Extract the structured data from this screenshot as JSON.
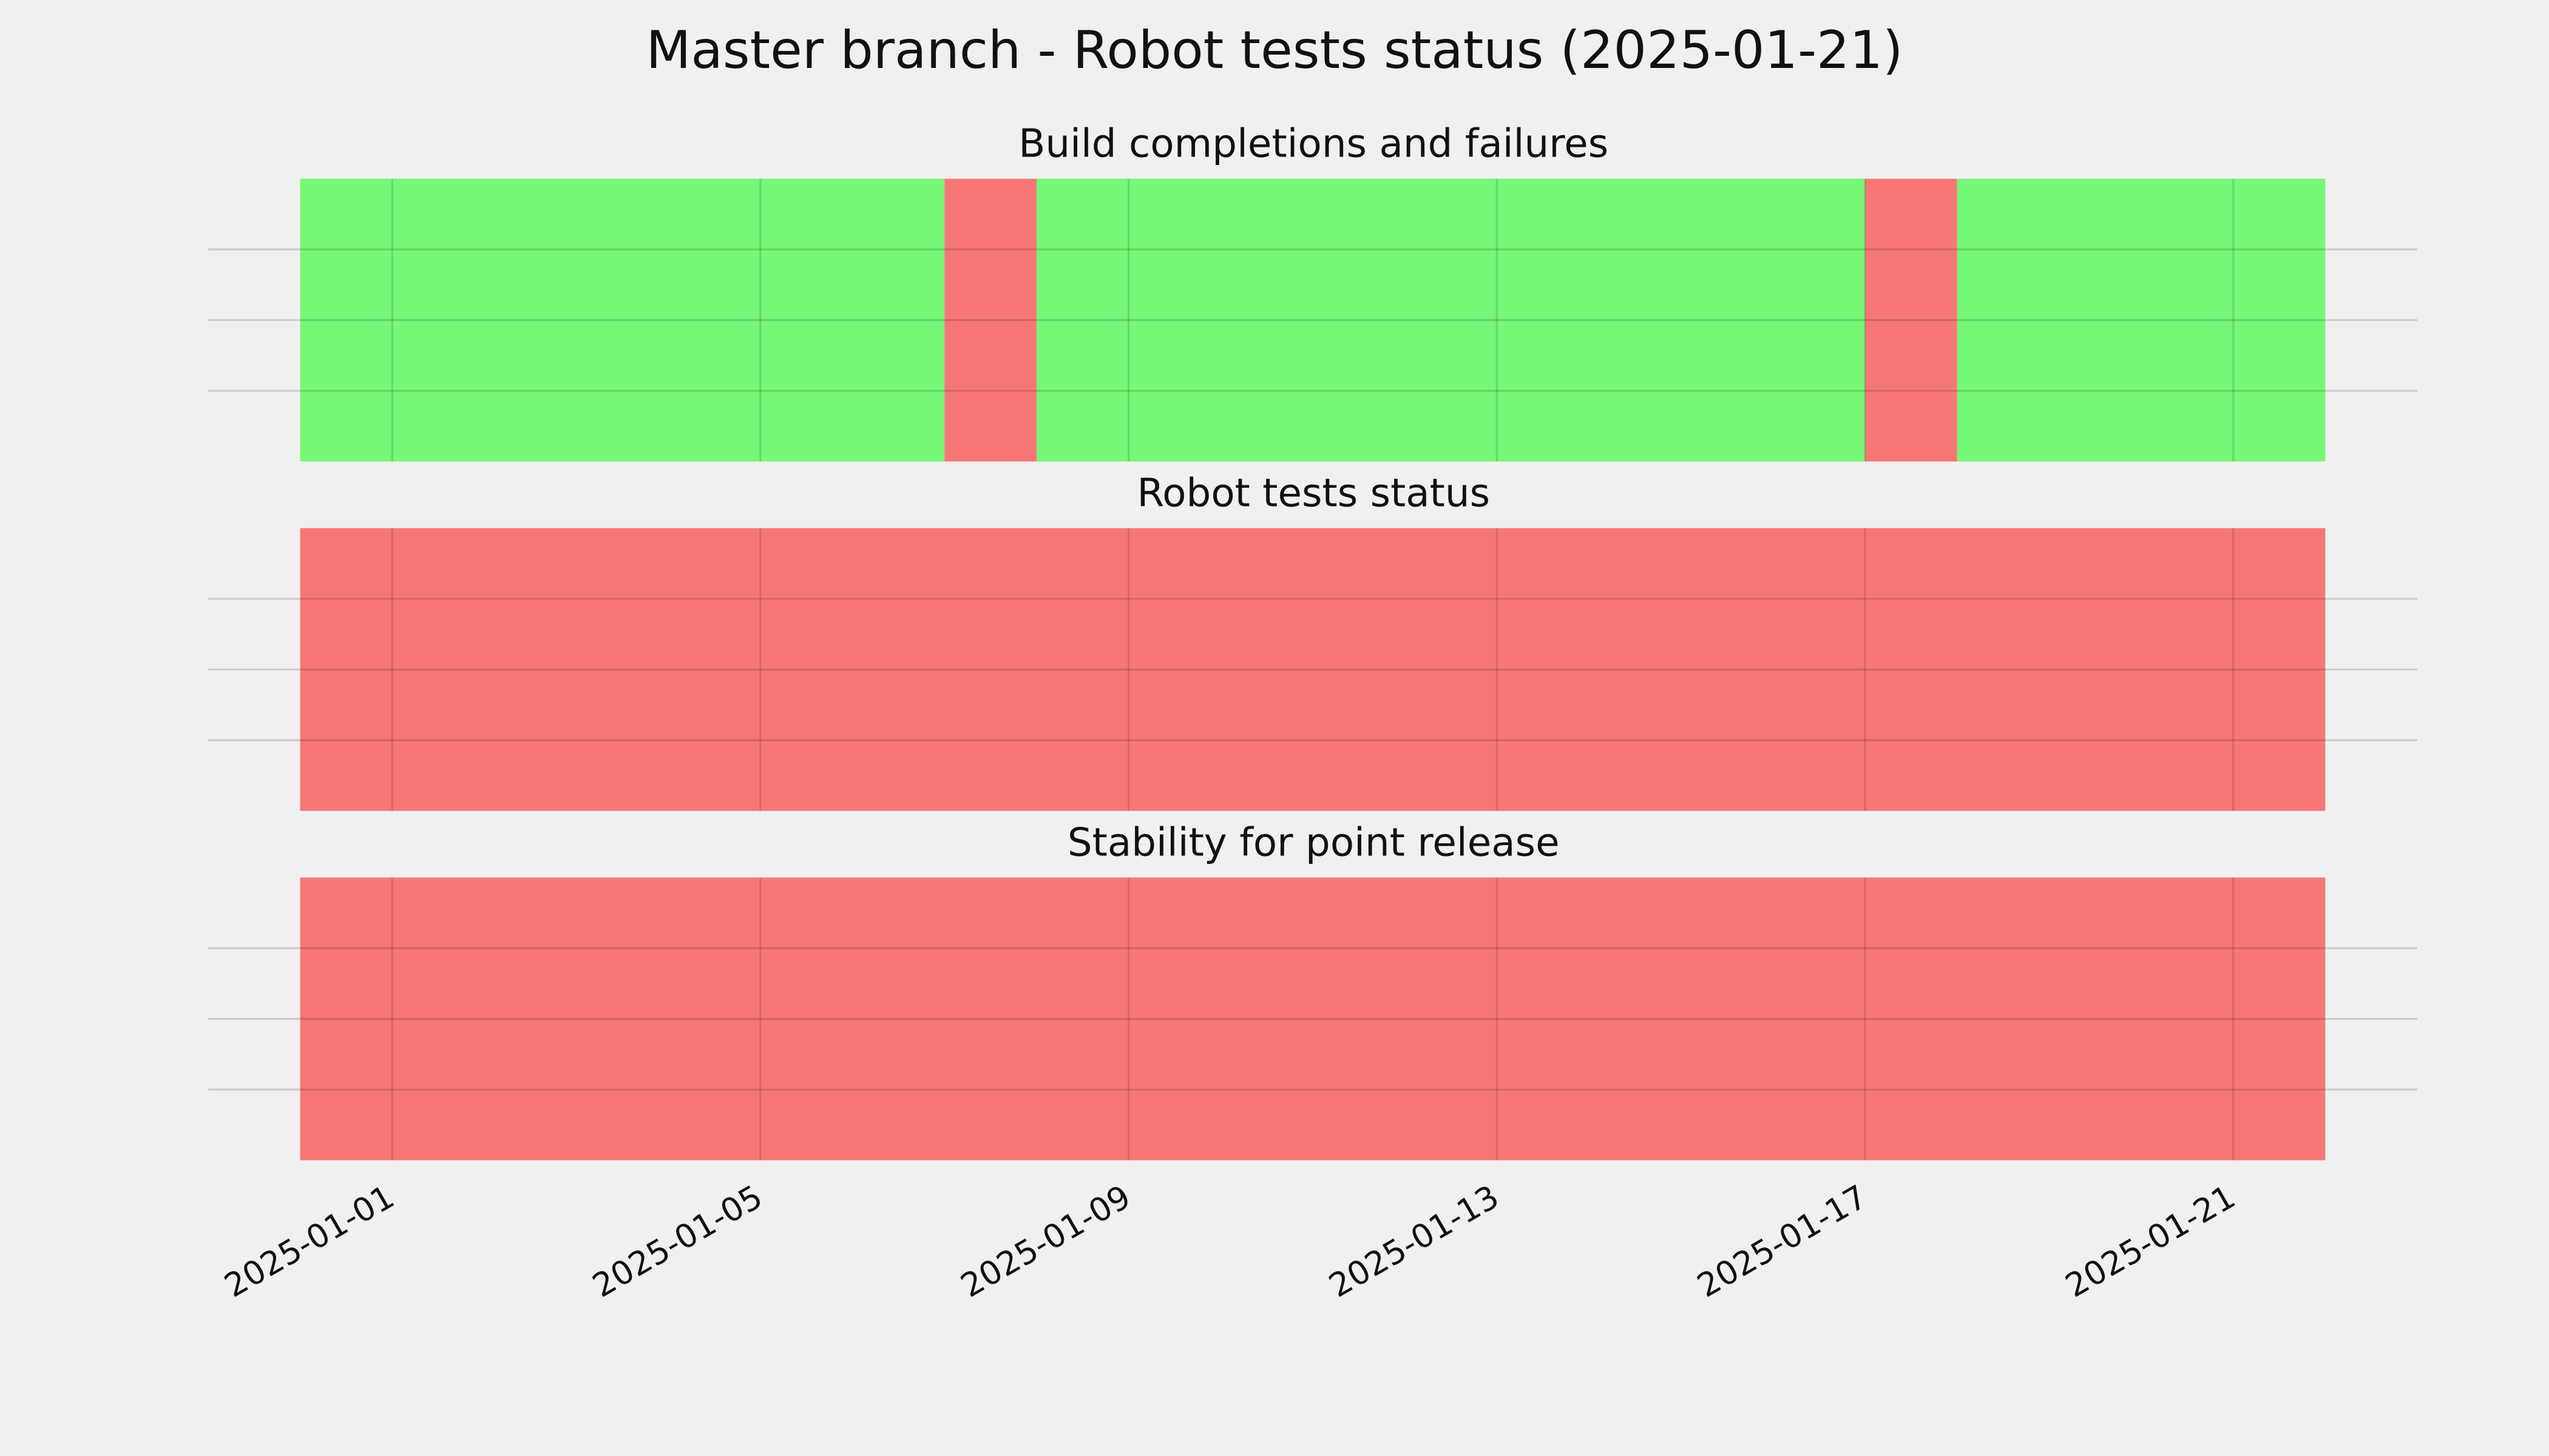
{
  "chart_data": {
    "type": "timeline",
    "title": "Master branch - Robot tests status (2025-01-21)",
    "xlim": [
      "2024-12-30",
      "2025-01-23"
    ],
    "xticks": [
      "2025-01-01",
      "2025-01-05",
      "2025-01-09",
      "2025-01-13",
      "2025-01-17",
      "2025-01-21"
    ],
    "ylim": [
      0,
      1
    ],
    "yticks": [
      0.25,
      0.5,
      0.75
    ],
    "grid": true,
    "panels": [
      {
        "title": "Build completions and failures",
        "segments": [
          {
            "start": "2024-12-31",
            "end": "2025-01-07",
            "color": "#77f777"
          },
          {
            "start": "2025-01-07",
            "end": "2025-01-08",
            "color": "#f77777"
          },
          {
            "start": "2025-01-08",
            "end": "2025-01-17",
            "color": "#77f777"
          },
          {
            "start": "2025-01-17",
            "end": "2025-01-18",
            "color": "#f77777"
          },
          {
            "start": "2025-01-18",
            "end": "2025-01-22",
            "color": "#77f777"
          }
        ]
      },
      {
        "title": "Robot tests status",
        "segments": [
          {
            "start": "2024-12-31",
            "end": "2025-01-22",
            "color": "#f77777"
          }
        ]
      },
      {
        "title": "Stability for point release",
        "segments": [
          {
            "start": "2024-12-31",
            "end": "2025-01-22",
            "color": "#f77777"
          }
        ]
      }
    ]
  }
}
